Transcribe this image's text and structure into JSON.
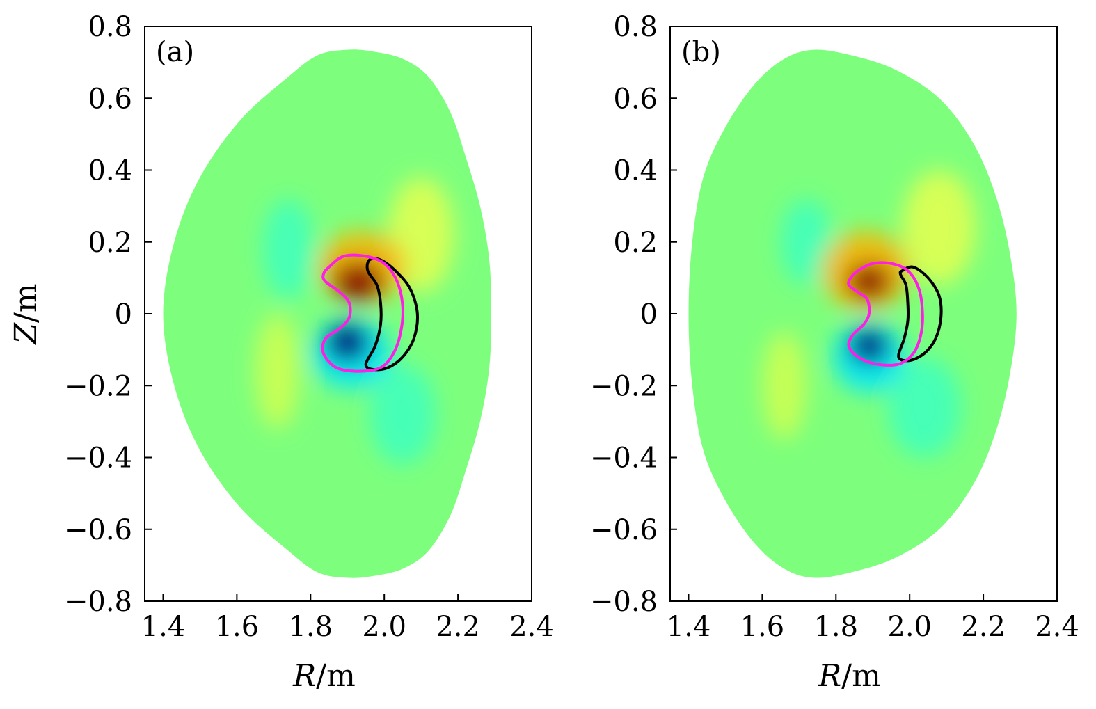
{
  "chart_data": [
    {
      "type": "heatmap",
      "panel_label": "(a)",
      "xlabel_var": "R",
      "xlabel_unit": "/m",
      "ylabel_var": "Z",
      "ylabel_unit": "/m",
      "xlim": [
        1.35,
        2.4
      ],
      "ylim": [
        -0.8,
        0.8
      ],
      "xticks": [
        1.4,
        1.6,
        1.8,
        2.0,
        2.2,
        2.4
      ],
      "xtick_labels": [
        "1.4",
        "1.6",
        "1.8",
        "2.0",
        "2.2",
        "2.4"
      ],
      "yticks": [
        0.8,
        0.6,
        0.4,
        0.2,
        0,
        -0.2,
        -0.4,
        -0.6,
        -0.8
      ],
      "ytick_labels": [
        "0.8",
        "0.6",
        "0.4",
        "0.2",
        "0",
        "−0.2",
        "−0.4",
        "−0.6",
        "−0.8"
      ],
      "boundary": [
        [
          1.4,
          0
        ],
        [
          1.43,
          0.2
        ],
        [
          1.5,
          0.38
        ],
        [
          1.61,
          0.54
        ],
        [
          1.74,
          0.66
        ],
        [
          1.82,
          0.72
        ],
        [
          1.9,
          0.735
        ],
        [
          1.97,
          0.73
        ],
        [
          2.05,
          0.71
        ],
        [
          2.12,
          0.66
        ],
        [
          2.18,
          0.56
        ],
        [
          2.22,
          0.44
        ],
        [
          2.26,
          0.3
        ],
        [
          2.285,
          0.15
        ],
        [
          2.29,
          0
        ],
        [
          2.285,
          -0.15
        ],
        [
          2.26,
          -0.3
        ],
        [
          2.22,
          -0.44
        ],
        [
          2.18,
          -0.56
        ],
        [
          2.12,
          -0.66
        ],
        [
          2.05,
          -0.71
        ],
        [
          1.97,
          -0.73
        ],
        [
          1.9,
          -0.735
        ],
        [
          1.82,
          -0.72
        ],
        [
          1.74,
          -0.66
        ],
        [
          1.61,
          -0.54
        ],
        [
          1.5,
          -0.38
        ],
        [
          1.43,
          -0.2
        ]
      ],
      "blobs": [
        {
          "name": "red-core",
          "r": 1.93,
          "z": 0.09,
          "sr": 0.07,
          "sz": 0.055,
          "color": "#8b0000"
        },
        {
          "name": "red-halo",
          "r": 1.94,
          "z": 0.13,
          "sr": 0.12,
          "sz": 0.1,
          "color": "#ffb000"
        },
        {
          "name": "blue-core",
          "r": 1.9,
          "z": -0.08,
          "sr": 0.06,
          "sz": 0.055,
          "color": "#000080"
        },
        {
          "name": "blue-halo",
          "r": 1.91,
          "z": -0.11,
          "sr": 0.11,
          "sz": 0.1,
          "color": "#00e6ff"
        },
        {
          "name": "yellow-upper-right",
          "r": 2.1,
          "z": 0.22,
          "sr": 0.09,
          "sz": 0.16,
          "color": "#e6ff50"
        },
        {
          "name": "cyan-upper-left",
          "r": 1.74,
          "z": 0.18,
          "sr": 0.07,
          "sz": 0.14,
          "color": "#3cffc0"
        },
        {
          "name": "yellow-lower-left",
          "r": 1.71,
          "z": -0.16,
          "sr": 0.06,
          "sz": 0.16,
          "color": "#d2ff50"
        },
        {
          "name": "cyan-lower-right",
          "r": 2.05,
          "z": -0.28,
          "sr": 0.09,
          "sz": 0.14,
          "color": "#3cffc0"
        }
      ],
      "magenta_contour": [
        [
          1.85,
          0.13
        ],
        [
          1.89,
          0.16
        ],
        [
          1.95,
          0.16
        ],
        [
          2.0,
          0.14
        ],
        [
          2.035,
          0.09
        ],
        [
          2.05,
          0.02
        ],
        [
          2.045,
          -0.05
        ],
        [
          2.025,
          -0.11
        ],
        [
          1.99,
          -0.15
        ],
        [
          1.93,
          -0.16
        ],
        [
          1.87,
          -0.15
        ],
        [
          1.835,
          -0.11
        ],
        [
          1.84,
          -0.07
        ],
        [
          1.88,
          -0.04
        ],
        [
          1.905,
          -0.01
        ],
        [
          1.905,
          0.03
        ],
        [
          1.88,
          0.06
        ],
        [
          1.84,
          0.09
        ],
        [
          1.835,
          0.11
        ]
      ],
      "black_contour": [
        [
          1.96,
          0.15
        ],
        [
          1.99,
          0.15
        ],
        [
          2.03,
          0.12
        ],
        [
          2.07,
          0.07
        ],
        [
          2.09,
          0.0
        ],
        [
          2.08,
          -0.07
        ],
        [
          2.05,
          -0.12
        ],
        [
          2.01,
          -0.15
        ],
        [
          1.97,
          -0.155
        ],
        [
          1.95,
          -0.14
        ],
        [
          1.975,
          -0.09
        ],
        [
          1.99,
          -0.03
        ],
        [
          1.99,
          0.03
        ],
        [
          1.98,
          0.08
        ],
        [
          1.955,
          0.12
        ]
      ]
    },
    {
      "type": "heatmap",
      "panel_label": "(b)",
      "xlabel_var": "R",
      "xlabel_unit": "/m",
      "ylabel_var": "",
      "ylabel_unit": "",
      "xlim": [
        1.35,
        2.4
      ],
      "ylim": [
        -0.8,
        0.8
      ],
      "xticks": [
        1.4,
        1.6,
        1.8,
        2.0,
        2.2,
        2.4
      ],
      "xtick_labels": [
        "1.4",
        "1.6",
        "1.8",
        "2.0",
        "2.2",
        "2.4"
      ],
      "yticks": [
        0.8,
        0.6,
        0.4,
        0.2,
        0,
        -0.2,
        -0.4,
        -0.6,
        -0.8
      ],
      "ytick_labels": [
        "0.8",
        "0.6",
        "0.4",
        "0.2",
        "0",
        "−0.2",
        "−0.4",
        "−0.6",
        "−0.8"
      ],
      "boundary": [
        [
          1.4,
          0
        ],
        [
          1.41,
          0.2
        ],
        [
          1.44,
          0.38
        ],
        [
          1.5,
          0.52
        ],
        [
          1.58,
          0.64
        ],
        [
          1.66,
          0.71
        ],
        [
          1.74,
          0.735
        ],
        [
          1.84,
          0.72
        ],
        [
          1.96,
          0.68
        ],
        [
          2.08,
          0.6
        ],
        [
          2.17,
          0.48
        ],
        [
          2.23,
          0.34
        ],
        [
          2.27,
          0.18
        ],
        [
          2.29,
          0
        ],
        [
          2.27,
          -0.18
        ],
        [
          2.23,
          -0.34
        ],
        [
          2.17,
          -0.48
        ],
        [
          2.08,
          -0.6
        ],
        [
          1.96,
          -0.68
        ],
        [
          1.84,
          -0.72
        ],
        [
          1.74,
          -0.735
        ],
        [
          1.66,
          -0.71
        ],
        [
          1.58,
          -0.64
        ],
        [
          1.5,
          -0.52
        ],
        [
          1.44,
          -0.38
        ],
        [
          1.41,
          -0.2
        ]
      ],
      "blobs": [
        {
          "name": "red-core",
          "r": 1.89,
          "z": 0.09,
          "sr": 0.06,
          "sz": 0.05,
          "color": "#8b0000"
        },
        {
          "name": "red-halo",
          "r": 1.88,
          "z": 0.12,
          "sr": 0.12,
          "sz": 0.11,
          "color": "#ffb000"
        },
        {
          "name": "blue-core",
          "r": 1.89,
          "z": -0.09,
          "sr": 0.055,
          "sz": 0.05,
          "color": "#000080"
        },
        {
          "name": "blue-halo",
          "r": 1.89,
          "z": -0.12,
          "sr": 0.1,
          "sz": 0.1,
          "color": "#00e6ff"
        },
        {
          "name": "yellow-upper-right",
          "r": 2.08,
          "z": 0.24,
          "sr": 0.1,
          "sz": 0.16,
          "color": "#e6ff50"
        },
        {
          "name": "cyan-upper-left",
          "r": 1.72,
          "z": 0.2,
          "sr": 0.07,
          "sz": 0.12,
          "color": "#3cffc0"
        },
        {
          "name": "yellow-lower-left",
          "r": 1.66,
          "z": -0.2,
          "sr": 0.06,
          "sz": 0.15,
          "color": "#d2ff50"
        },
        {
          "name": "cyan-lower-right",
          "r": 2.04,
          "z": -0.26,
          "sr": 0.1,
          "sz": 0.14,
          "color": "#3cffc0"
        }
      ],
      "magenta_contour": [
        [
          1.86,
          0.12
        ],
        [
          1.9,
          0.14
        ],
        [
          1.95,
          0.14
        ],
        [
          1.995,
          0.12
        ],
        [
          2.025,
          0.07
        ],
        [
          2.035,
          0.0
        ],
        [
          2.03,
          -0.06
        ],
        [
          2.01,
          -0.11
        ],
        [
          1.97,
          -0.14
        ],
        [
          1.91,
          -0.14
        ],
        [
          1.86,
          -0.12
        ],
        [
          1.835,
          -0.09
        ],
        [
          1.845,
          -0.06
        ],
        [
          1.875,
          -0.03
        ],
        [
          1.89,
          0.0
        ],
        [
          1.885,
          0.04
        ],
        [
          1.86,
          0.06
        ],
        [
          1.835,
          0.08
        ],
        [
          1.84,
          0.1
        ]
      ],
      "black_contour": [
        [
          1.98,
          0.12
        ],
        [
          2.01,
          0.13
        ],
        [
          2.05,
          0.1
        ],
        [
          2.08,
          0.05
        ],
        [
          2.085,
          -0.01
        ],
        [
          2.07,
          -0.07
        ],
        [
          2.04,
          -0.11
        ],
        [
          2.0,
          -0.13
        ],
        [
          1.97,
          -0.12
        ],
        [
          1.985,
          -0.07
        ],
        [
          1.995,
          -0.02
        ],
        [
          1.995,
          0.03
        ],
        [
          1.99,
          0.08
        ],
        [
          1.975,
          0.11
        ]
      ]
    }
  ],
  "colors": {
    "background_field": "#7dff7d",
    "magenta": "#ff1ee6",
    "black": "#000000"
  }
}
